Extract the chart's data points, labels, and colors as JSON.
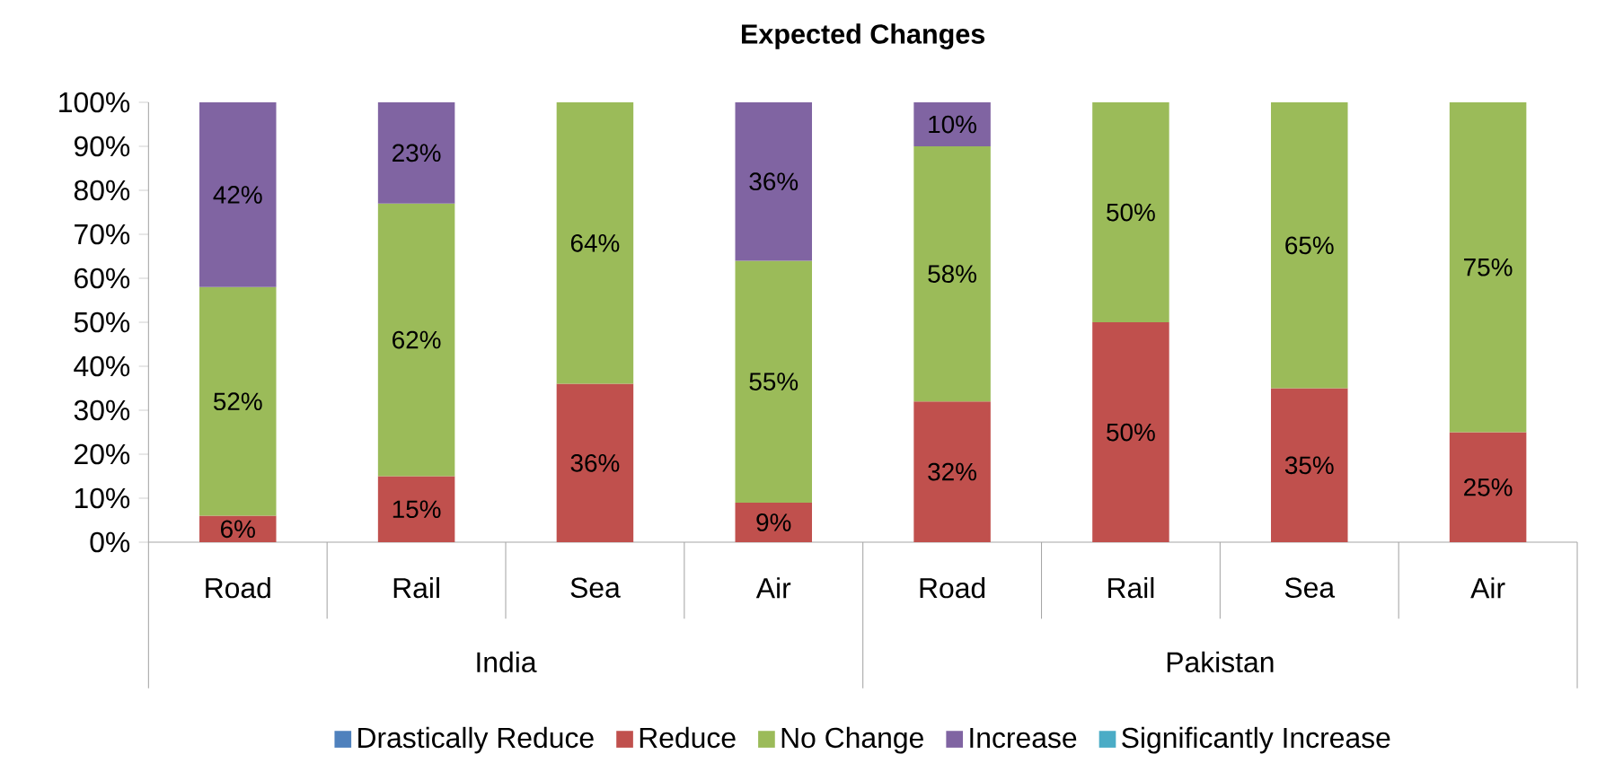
{
  "chart_data": {
    "type": "bar",
    "title": "Expected Changes",
    "stacked": true,
    "categories": [
      "Road",
      "Rail",
      "Sea",
      "Air",
      "Road",
      "Rail",
      "Sea",
      "Air"
    ],
    "annotations": [
      "India",
      "Pakistan"
    ],
    "series": [
      {
        "name": "Drastically Reduce",
        "color": "#4f81bd",
        "values": [
          null,
          null,
          null,
          null,
          null,
          null,
          null,
          null
        ]
      },
      {
        "name": "Reduce",
        "color": "#c0504d",
        "values": [
          6,
          15,
          36,
          9,
          32,
          50,
          35,
          25
        ],
        "value_labels": [
          "6%",
          "15%",
          "36%",
          "9%",
          "32%",
          "50%",
          "35%",
          "25%"
        ]
      },
      {
        "name": "No Change",
        "color": "#9bbb59",
        "values": [
          52,
          62,
          64,
          55,
          58,
          50,
          65,
          75
        ],
        "value_labels": [
          "52%",
          "62%",
          "64%",
          "55%",
          "58%",
          "50%",
          "65%",
          "75%"
        ]
      },
      {
        "name": "Increase",
        "color": "#8064a2",
        "values": [
          42,
          23,
          null,
          36,
          10,
          null,
          null,
          null
        ],
        "value_labels": [
          "42%",
          "23%",
          null,
          "36%",
          "10%",
          null,
          null,
          null
        ]
      },
      {
        "name": "Significantly Increase",
        "color": "#4bacc6",
        "values": [
          null,
          null,
          null,
          null,
          null,
          null,
          null,
          null
        ]
      }
    ],
    "ylim": [
      0,
      100
    ],
    "yticks": [
      {
        "value": 0,
        "label": "0%"
      },
      {
        "value": 10,
        "label": "10%"
      },
      {
        "value": 20,
        "label": "20%"
      },
      {
        "value": 30,
        "label": "30%"
      },
      {
        "value": 40,
        "label": "40%"
      },
      {
        "value": 50,
        "label": "50%"
      },
      {
        "value": 60,
        "label": "60%"
      },
      {
        "value": 70,
        "label": "70%"
      },
      {
        "value": 80,
        "label": "80%"
      },
      {
        "value": 90,
        "label": "90%"
      },
      {
        "value": 100,
        "label": "100%"
      }
    ],
    "grid": false,
    "legend": "bottom"
  }
}
